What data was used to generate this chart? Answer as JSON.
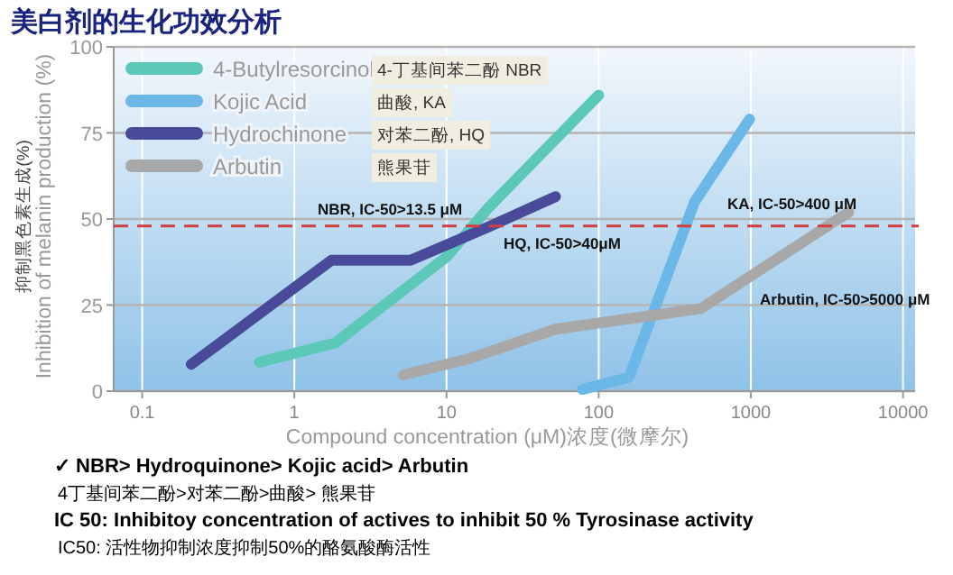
{
  "chart_data": {
    "type": "line",
    "title": "美白剂的生化功效分析",
    "xlabel": "Compound concentration (μM)浓度(微摩尔)",
    "ylabel": "抑制黑色素生成(%)\nInhibition of melanin production (%)",
    "log": "x",
    "xlim": [
      0.065,
      12000
    ],
    "xticks": [
      0.1,
      1,
      10,
      100,
      1000,
      10000
    ],
    "ylim": [
      0,
      100
    ],
    "yticks": [
      0,
      25,
      50,
      75,
      100
    ],
    "grid": true,
    "legend": "top left",
    "marker": "none",
    "line_style": "solid",
    "series": [
      {
        "name": "4-Butylresorcinol",
        "color": "#5cc8b8",
        "x": [
          0.59,
          1.86,
          10,
          18.6,
          100
        ],
        "values": [
          8.4,
          14,
          39,
          53,
          86
        ]
      },
      {
        "name": "Kojic Acid",
        "color": "#6bb8e8",
        "x": [
          78,
          158,
          427,
          980
        ],
        "values": [
          0.5,
          4,
          55,
          79
        ]
      },
      {
        "name": "Hydrochinone",
        "color": "#4a4a9a",
        "x": [
          0.21,
          0.59,
          1.75,
          5.8,
          18.6,
          52
        ],
        "values": [
          7.8,
          22.5,
          38,
          38,
          47.6,
          56.5
        ]
      },
      {
        "name": "Arbutin",
        "color": "#a8a8a8",
        "x": [
          5.2,
          14,
          52,
          470,
          4400
        ],
        "values": [
          4.7,
          9.4,
          18,
          24,
          52
        ]
      }
    ],
    "ref_lines": [
      {
        "axis": "y",
        "value": 48,
        "color": "#d04040",
        "line_style": "dashed"
      }
    ],
    "annotations": [
      "4-丁基间苯二酚 NBR",
      "曲酸, KA",
      "对苯二酚, HQ",
      "熊果苷",
      "NBR, IC-50>13.5 μM",
      "HQ, IC-50>40μM",
      "KA, IC-50>400 μM",
      "Arbutin, IC-50>5000 μM",
      "✓ NBR> Hydroquinone> Kojic acid> Arbutin",
      "4丁基间苯二酚>对苯二酚>曲酸> 熊果苷",
      "IC 50: Inhibitoy concentration of actives to inhibit 50 % Tyrosinase activity",
      "IC50: 活性物抑制浓度抑制50%的酪氨酸酶活性"
    ]
  }
}
